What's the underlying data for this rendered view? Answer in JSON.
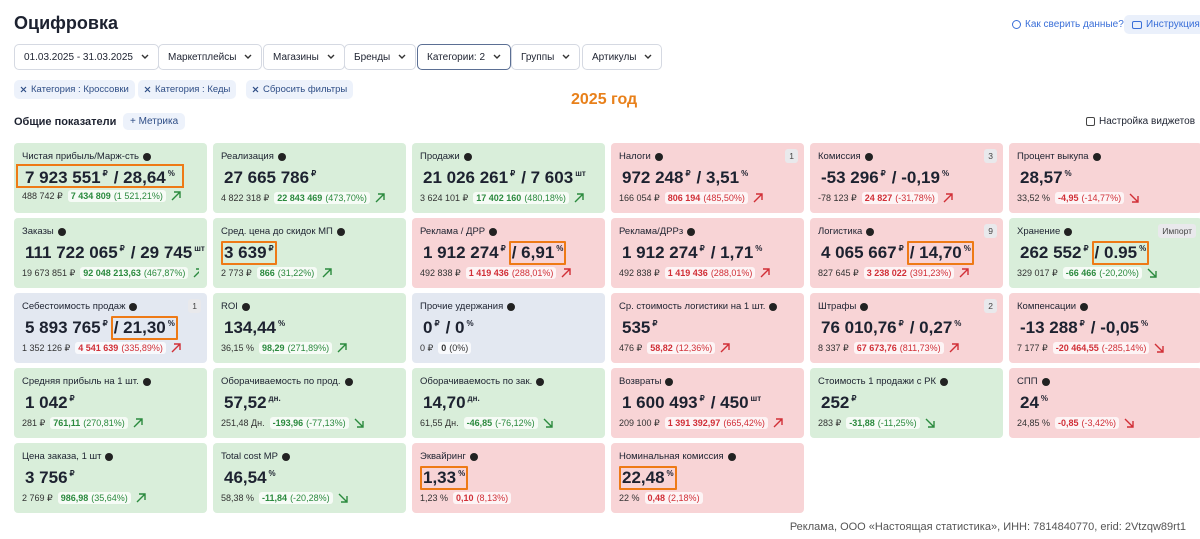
{
  "header": {
    "title": "Оцифровка",
    "help_link": "Как сверить данные?",
    "instructions": "Инструкция"
  },
  "filters": [
    "01.03.2025 - 31.03.2025",
    "Маркетплейсы",
    "Магазины",
    "Бренды",
    "Категории: 2",
    "Группы",
    "Артикулы"
  ],
  "chips": [
    "Категория : Кроссовки",
    "Категория : Кеды",
    "Сбросить фильтры"
  ],
  "annotation": "2025 год",
  "section": {
    "title": "Общие показатели",
    "add_metric": "+ Метрика",
    "settings": "Настройка виджетов"
  },
  "cards": [
    {
      "title": "Чистая прибыль/Марж-сть",
      "value": "7 923 551",
      "unit": "₽",
      "value2": "/ 28,64",
      "unit2": "%",
      "prev": "488 742 ₽",
      "delta": "7 434 809",
      "delta_pct": "(1 521,21%)",
      "delta_tone": "green",
      "trend": "up",
      "tone": "green",
      "highlight": "both"
    },
    {
      "title": "Реализация",
      "value": "27 665 786",
      "unit": "₽",
      "prev": "4 822 318 ₽",
      "delta": "22 843 469",
      "delta_pct": "(473,70%)",
      "delta_tone": "green",
      "trend": "up",
      "tone": "green"
    },
    {
      "title": "Продажи",
      "value": "21 026 261",
      "unit": "₽",
      "value2": "/ 7 603",
      "unit2": "шт",
      "prev": "3 624 101 ₽",
      "delta": "17 402 160",
      "delta_pct": "(480,18%)",
      "delta_tone": "green",
      "trend": "up",
      "tone": "green"
    },
    {
      "title": "Налоги",
      "badge": "1",
      "value": "972 248",
      "unit": "₽",
      "value2": "/ 3,51",
      "unit2": "%",
      "prev": "166 054 ₽",
      "delta": "806 194",
      "delta_pct": "(485,50%)",
      "delta_tone": "red",
      "trend": "up",
      "tone": "red"
    },
    {
      "title": "Комиссия",
      "badge": "3",
      "value": "-53 296",
      "unit": "₽",
      "value2": "/ -0,19",
      "unit2": "%",
      "prev": "-78 123 ₽",
      "delta": "24 827",
      "delta_pct": "(-31,78%)",
      "delta_tone": "red",
      "trend": "up",
      "tone": "red"
    },
    {
      "title": "Процент выкупа",
      "value": "28,57",
      "unit": "%",
      "prev": "33,52 %",
      "delta": "-4,95",
      "delta_pct": "(-14,77%)",
      "delta_tone": "red",
      "trend": "down",
      "tone": "red"
    },
    {
      "title": "Заказы",
      "value": "111 722 065",
      "unit": "₽",
      "value2": "/ 29 745",
      "unit2": "шт",
      "prev": "19 673 851 ₽",
      "delta": "92 048 213,63",
      "delta_pct": "(467,87%)",
      "delta_tone": "green",
      "trend": "up",
      "tone": "green"
    },
    {
      "title": "Сред. цена до скидок МП",
      "value": "3 639",
      "unit": "₽",
      "prev": "2 773 ₽",
      "delta": "866",
      "delta_pct": "(31,22%)",
      "delta_tone": "green",
      "trend": "up",
      "tone": "green",
      "highlight": "value"
    },
    {
      "title": "Реклама / ДРР",
      "value": "1 912 274",
      "unit": "₽",
      "value2": "/ 6,91",
      "unit2": "%",
      "prev": "492 838 ₽",
      "delta": "1 419 436",
      "delta_pct": "(288,01%)",
      "delta_tone": "red",
      "trend": "up",
      "tone": "red",
      "highlight": "value2"
    },
    {
      "title": "Реклама/ДРРз",
      "value": "1 912 274",
      "unit": "₽",
      "value2": "/ 1,71",
      "unit2": "%",
      "prev": "492 838 ₽",
      "delta": "1 419 436",
      "delta_pct": "(288,01%)",
      "delta_tone": "red",
      "trend": "up",
      "tone": "red"
    },
    {
      "title": "Логистика",
      "badge": "9",
      "value": "4 065 667",
      "unit": "₽",
      "value2": "/ 14,70",
      "unit2": "%",
      "prev": "827 645 ₽",
      "delta": "3 238 022",
      "delta_pct": "(391,23%)",
      "delta_tone": "red",
      "trend": "up",
      "tone": "red",
      "highlight": "value2"
    },
    {
      "title": "Хранение",
      "badge": "Импорт",
      "value": "262 552",
      "unit": "₽",
      "value2": "/ 0.95",
      "unit2": "%",
      "prev": "329 017 ₽",
      "delta": "-66 466",
      "delta_pct": "(-20,20%)",
      "delta_tone": "green",
      "trend": "down",
      "tone": "green",
      "highlight": "value2"
    },
    {
      "title": "Себестоимость продаж",
      "badge": "1",
      "value": "5 893 765",
      "unit": "₽",
      "value2": "/ 21,30",
      "unit2": "%",
      "prev": "1 352 126 ₽",
      "delta": "4 541 639",
      "delta_pct": "(335,89%)",
      "delta_tone": "red",
      "trend": "up",
      "tone": "blue",
      "highlight": "value2"
    },
    {
      "title": "ROI",
      "value": "134,44",
      "unit": "%",
      "prev": "36,15 %",
      "delta": "98,29",
      "delta_pct": "(271,89%)",
      "delta_tone": "green",
      "trend": "up",
      "tone": "green"
    },
    {
      "title": "Прочие удержания",
      "value": "0",
      "unit": "₽",
      "value2": "/ 0",
      "unit2": "%",
      "prev": "0 ₽",
      "delta": "0",
      "delta_pct": "(0%)",
      "delta_tone": "neutral",
      "tone": "blue"
    },
    {
      "title": "Ср. стоимость логистики на 1 шт.",
      "value": "535",
      "unit": "₽",
      "prev": "476 ₽",
      "delta": "58,82",
      "delta_pct": "(12,36%)",
      "delta_tone": "red",
      "trend": "up",
      "tone": "red"
    },
    {
      "title": "Штрафы",
      "badge": "2",
      "value": "76 010,76",
      "unit": "₽",
      "value2": "/ 0,27",
      "unit2": "%",
      "prev": "8 337 ₽",
      "delta": "67 673,76",
      "delta_pct": "(811,73%)",
      "delta_tone": "red",
      "trend": "up",
      "tone": "red"
    },
    {
      "title": "Компенсации",
      "value": "-13 288",
      "unit": "₽",
      "value2": "/ -0,05",
      "unit2": "%",
      "prev": "7 177 ₽",
      "delta": "-20 464,55",
      "delta_pct": "(-285,14%)",
      "delta_tone": "red",
      "trend": "down",
      "tone": "red"
    },
    {
      "title": "Средняя прибыль на 1 шт.",
      "value": "1 042",
      "unit": "₽",
      "prev": "281 ₽",
      "delta": "761,11",
      "delta_pct": "(270,81%)",
      "delta_tone": "green",
      "trend": "up",
      "tone": "green"
    },
    {
      "title": "Оборачиваемость по прод.",
      "value": "57,52",
      "unit": "дн.",
      "prev": "251,48 Дн.",
      "delta": "-193,96",
      "delta_pct": "(-77,13%)",
      "delta_tone": "green",
      "trend": "down",
      "tone": "green"
    },
    {
      "title": "Оборачиваемость по зак.",
      "value": "14,70",
      "unit": "дн.",
      "prev": "61,55 Дн.",
      "delta": "-46,85",
      "delta_pct": "(-76,12%)",
      "delta_tone": "green",
      "trend": "down",
      "tone": "green"
    },
    {
      "title": "Возвраты",
      "value": "1 600 493",
      "unit": "₽",
      "value2": "/ 450",
      "unit2": "шт",
      "prev": "209 100 ₽",
      "delta": "1 391 392,97",
      "delta_pct": "(665,42%)",
      "delta_tone": "red",
      "trend": "up",
      "tone": "red"
    },
    {
      "title": "Стоимость 1 продажи с РК",
      "value": "252",
      "unit": "₽",
      "prev": "283 ₽",
      "delta": "-31,88",
      "delta_pct": "(-11,25%)",
      "delta_tone": "green",
      "trend": "down",
      "tone": "green"
    },
    {
      "title": "СПП",
      "value": "24",
      "unit": "%",
      "prev": "24,85 %",
      "delta": "-0,85",
      "delta_pct": "(-3,42%)",
      "delta_tone": "red",
      "trend": "down",
      "tone": "red"
    },
    {
      "title": "Цена заказа, 1 шт",
      "value": "3 756",
      "unit": "₽",
      "prev": "2 769 ₽",
      "delta": "986,98",
      "delta_pct": "(35,64%)",
      "delta_tone": "green",
      "trend": "up",
      "tone": "green"
    },
    {
      "title": "Total cost MP",
      "value": "46,54",
      "unit": "%",
      "prev": "58,38 %",
      "delta": "-11,84",
      "delta_pct": "(-20,28%)",
      "delta_tone": "green",
      "trend": "down",
      "tone": "green"
    },
    {
      "title": "Эквайринг",
      "value": "1,33",
      "unit": "%",
      "prev": "1,23 %",
      "delta": "0,10",
      "delta_pct": "(8,13%)",
      "delta_tone": "red",
      "tone": "red",
      "highlight": "value"
    },
    {
      "title": "Номинальная комиссия",
      "value": "22,48",
      "unit": "%",
      "prev": "22 %",
      "delta": "0,48",
      "delta_pct": "(2,18%)",
      "delta_tone": "red",
      "tone": "red",
      "highlight": "value"
    }
  ],
  "footer": "Реклама, ООО «Настоящая статистика», ИНН: 7814840770, erid: 2Vtzqw89rt1"
}
